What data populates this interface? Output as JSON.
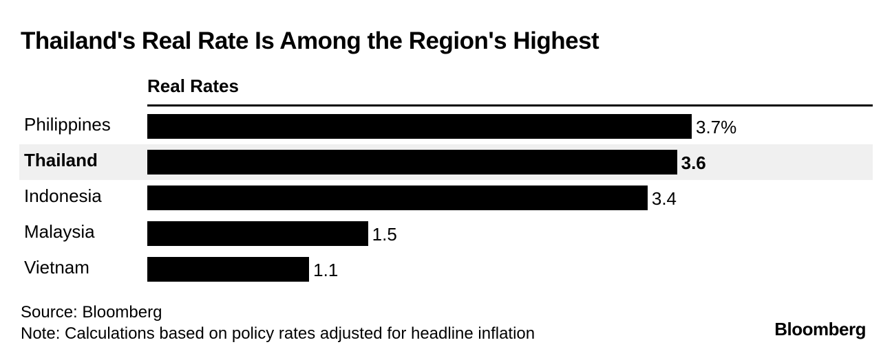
{
  "chart_data": {
    "type": "bar",
    "orientation": "horizontal",
    "title": "Thailand's Real Rate Is Among the Region's Highest",
    "series_label": "Real Rates",
    "categories": [
      "Philippines",
      "Thailand",
      "Indonesia",
      "Malaysia",
      "Vietnam"
    ],
    "values": [
      3.7,
      3.6,
      3.4,
      1.5,
      1.1
    ],
    "value_labels": [
      "3.7%",
      "3.6",
      "3.4",
      "1.5",
      "1.1"
    ],
    "highlight": "Thailand",
    "xlim": [
      0,
      3.7
    ],
    "unit": "%",
    "bar_color": "#000000",
    "highlight_row_color": "#f0f0f0"
  },
  "footer": {
    "source": "Source: Bloomberg",
    "note": "Note: Calculations based on policy rates adjusted for headline inflation",
    "brand": "Bloomberg"
  }
}
